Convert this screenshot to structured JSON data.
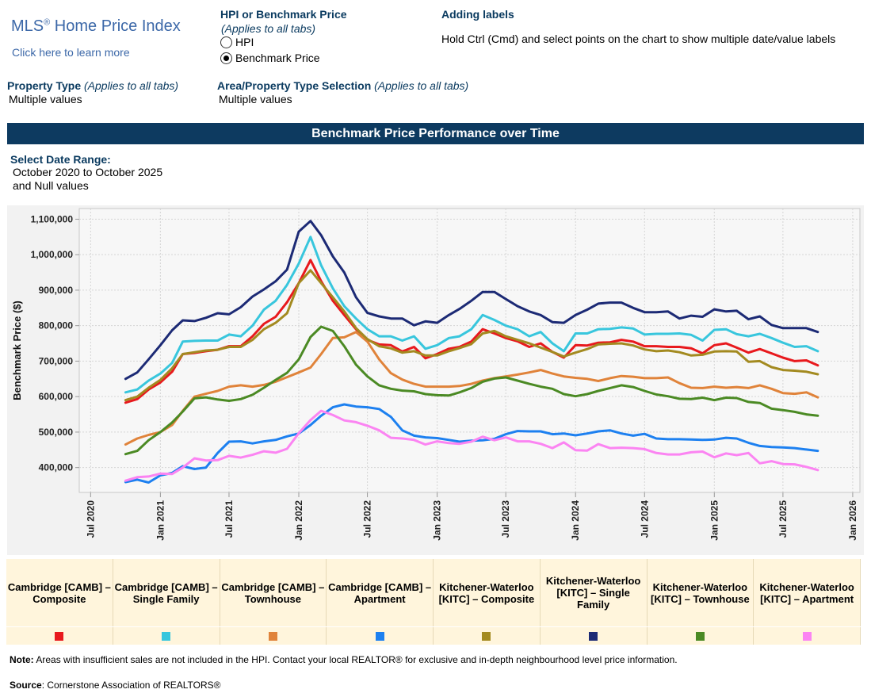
{
  "header": {
    "logo_title": "MLS",
    "logo_reg": "®",
    "logo_title_rest": " Home Price Index",
    "logo_link": "Click here to learn more",
    "hpi_group_label": "HPI or Benchmark Price",
    "hpi_group_note": "(Applies to all tabs)",
    "radio_hpi": "HPI",
    "radio_benchmark": "Benchmark Price",
    "selected_option": "Benchmark Price",
    "adding_labels_title": "Adding labels",
    "adding_labels_text": "Hold Ctrl (Cmd) and select points on the chart to show multiple date/value labels",
    "property_type_label": "Property Type",
    "property_type_note": "(Applies to all tabs)",
    "property_type_value": "Multiple values",
    "area_label": "Area/Property Type Selection",
    "area_note": "(Applies to all tabs)",
    "area_value": "Multiple values"
  },
  "banner": {
    "title": "Benchmark Price Performance over Time"
  },
  "date_range": {
    "label": "Select Date Range:",
    "line1": "October 2020 to October 2025",
    "line2": "and Null values"
  },
  "footer": {
    "note_label": "Note:",
    "note_text": " Areas with insufficient sales are not included in the HPI. Contact your local REALTOR® for exclusive and in-depth neighbourhood level price information.",
    "source_label": "Source",
    "source_text": ": Cornerstone Association of REALTORS®"
  },
  "chart_data": {
    "type": "line",
    "ylabel": "Benchmark Price ($)",
    "ylim": [
      330000,
      1130000
    ],
    "xlim": [
      "2020-06-01",
      "2026-01-20"
    ],
    "yticks": [
      400000,
      500000,
      600000,
      700000,
      800000,
      900000,
      1000000,
      1100000
    ],
    "ytick_labels": [
      "400,000",
      "500,000",
      "600,000",
      "700,000",
      "800,000",
      "900,000",
      "1,000,000",
      "1,100,000"
    ],
    "xticks": [
      "2020-07-01",
      "2021-01-01",
      "2021-07-01",
      "2022-01-01",
      "2022-07-01",
      "2023-01-01",
      "2023-07-01",
      "2024-01-01",
      "2024-07-01",
      "2025-01-01",
      "2025-07-01",
      "2026-01-01"
    ],
    "xtick_labels": [
      "Jul 2020",
      "Jan 2021",
      "Jul 2021",
      "Jan 2022",
      "Jul 2022",
      "Jan 2023",
      "Jul 2023",
      "Jan 2024",
      "Jul 2024",
      "Jan 2025",
      "Jul 2025",
      "Jan 2026"
    ],
    "grid": true,
    "x_start": "2020-10",
    "x_end": "2025-10",
    "series": [
      {
        "name": "Cambridge [CAMB] – Composite",
        "color": "#e8191d",
        "values": [
          583000,
          593000,
          620000,
          640000,
          670000,
          720000,
          723000,
          728000,
          732000,
          742000,
          742000,
          770000,
          805000,
          825000,
          866000,
          920000,
          985000,
          925000,
          870000,
          830000,
          790000,
          760000,
          747000,
          745000,
          727000,
          740000,
          708000,
          720000,
          735000,
          740000,
          755000,
          790000,
          778000,
          765000,
          756000,
          740000,
          750000,
          726000,
          710000,
          745000,
          744000,
          752000,
          753000,
          760000,
          755000,
          742000,
          742000,
          740000,
          740000,
          736000,
          722000,
          745000,
          750000,
          738000,
          724000,
          734000,
          722000,
          710000,
          700000,
          702000,
          688000
        ]
      },
      {
        "name": "Cambridge [CAMB] – Single Family",
        "color": "#38c6dd",
        "values": [
          612000,
          620000,
          645000,
          665000,
          695000,
          755000,
          757000,
          758000,
          758000,
          775000,
          770000,
          800000,
          845000,
          870000,
          915000,
          975000,
          1050000,
          970000,
          905000,
          855000,
          820000,
          790000,
          770000,
          770000,
          758000,
          770000,
          735000,
          745000,
          765000,
          770000,
          790000,
          830000,
          816000,
          800000,
          790000,
          770000,
          782000,
          750000,
          728000,
          778000,
          778000,
          790000,
          791000,
          795000,
          792000,
          775000,
          777000,
          777000,
          778000,
          774000,
          758000,
          788000,
          790000,
          776000,
          770000,
          777000,
          765000,
          752000,
          740000,
          742000,
          728000
        ]
      },
      {
        "name": "Cambridge [CAMB] – Townhouse",
        "color": "#e0833a",
        "values": [
          465000,
          482000,
          492000,
          500000,
          520000,
          560000,
          600000,
          608000,
          616000,
          628000,
          632000,
          628000,
          633000,
          642000,
          655000,
          668000,
          682000,
          720000,
          765000,
          767000,
          782000,
          755000,
          705000,
          666000,
          648000,
          636000,
          628000,
          628000,
          628000,
          630000,
          636000,
          645000,
          652000,
          657000,
          662000,
          668000,
          675000,
          665000,
          657000,
          653000,
          650000,
          644000,
          652000,
          658000,
          656000,
          652000,
          652000,
          654000,
          638000,
          625000,
          624000,
          628000,
          625000,
          627000,
          624000,
          632000,
          622000,
          610000,
          608000,
          612000,
          598000
        ]
      },
      {
        "name": "Cambridge [CAMB] – Apartment",
        "color": "#1d80f0",
        "values": [
          359000,
          366000,
          358000,
          378000,
          385000,
          404000,
          396000,
          400000,
          441000,
          473000,
          474000,
          468000,
          474000,
          478000,
          488000,
          496000,
          520000,
          546000,
          570000,
          578000,
          572000,
          570000,
          565000,
          543000,
          505000,
          490000,
          485000,
          483000,
          478000,
          473000,
          476000,
          477000,
          481000,
          494000,
          503000,
          502000,
          502000,
          494000,
          496000,
          491000,
          496000,
          502000,
          505000,
          496000,
          490000,
          495000,
          482000,
          480000,
          480000,
          479000,
          478000,
          479000,
          484000,
          482000,
          470000,
          461000,
          458000,
          457000,
          455000,
          451000,
          447000
        ]
      },
      {
        "name": "Kitchener-Waterloo [KITC] – Composite",
        "color": "#a38a20",
        "values": [
          590000,
          600000,
          625000,
          647000,
          680000,
          720000,
          725000,
          730000,
          732000,
          740000,
          740000,
          760000,
          790000,
          808000,
          835000,
          920000,
          956000,
          920000,
          880000,
          840000,
          793000,
          762000,
          742000,
          736000,
          724000,
          728000,
          716000,
          716000,
          728000,
          737000,
          748000,
          778000,
          785000,
          770000,
          760000,
          750000,
          738000,
          726000,
          713000,
          724000,
          734000,
          747000,
          749000,
          750000,
          744000,
          733000,
          728000,
          730000,
          725000,
          716000,
          718000,
          727000,
          728000,
          727000,
          698000,
          700000,
          683000,
          675000,
          673000,
          670000,
          663000
        ]
      },
      {
        "name": "Kitchener-Waterloo [KITC] – Single Family",
        "color": "#1c2a75",
        "values": [
          650000,
          668000,
          705000,
          745000,
          787000,
          815000,
          813000,
          822000,
          835000,
          832000,
          852000,
          882000,
          902000,
          925000,
          958000,
          1065000,
          1095000,
          1055000,
          995000,
          950000,
          880000,
          836000,
          826000,
          820000,
          820000,
          801000,
          812000,
          808000,
          830000,
          847000,
          870000,
          895000,
          895000,
          875000,
          855000,
          840000,
          830000,
          810000,
          808000,
          830000,
          845000,
          862000,
          865000,
          865000,
          850000,
          838000,
          838000,
          840000,
          820000,
          828000,
          825000,
          846000,
          840000,
          842000,
          818000,
          826000,
          802000,
          793000,
          793000,
          793000,
          782000
        ]
      },
      {
        "name": "Kitchener-Waterloo [KITC] – Townhouse",
        "color": "#4b8a24",
        "values": [
          438000,
          447000,
          477000,
          500000,
          527000,
          558000,
          595000,
          598000,
          592000,
          588000,
          593000,
          605000,
          625000,
          647000,
          667000,
          705000,
          768000,
          797000,
          785000,
          742000,
          690000,
          657000,
          632000,
          622000,
          617000,
          615000,
          607000,
          604000,
          603000,
          612000,
          624000,
          642000,
          651000,
          654000,
          645000,
          636000,
          628000,
          622000,
          607000,
          601000,
          607000,
          616000,
          624000,
          632000,
          627000,
          616000,
          606000,
          601000,
          594000,
          593000,
          597000,
          590000,
          597000,
          596000,
          585000,
          582000,
          566000,
          562000,
          557000,
          550000,
          546000
        ]
      },
      {
        "name": "Kitchener-Waterloo [KITC] – Apartment",
        "color": "#fb84f2",
        "values": [
          363000,
          373000,
          375000,
          383000,
          382000,
          400000,
          426000,
          420000,
          421000,
          433000,
          428000,
          436000,
          446000,
          442000,
          453000,
          497000,
          534000,
          560000,
          548000,
          533000,
          528000,
          518000,
          505000,
          484000,
          482000,
          478000,
          465000,
          474000,
          469000,
          467000,
          473000,
          487000,
          477000,
          485000,
          474000,
          474000,
          467000,
          455000,
          471000,
          449000,
          448000,
          466000,
          455000,
          456000,
          455000,
          452000,
          441000,
          437000,
          437000,
          443000,
          445000,
          429000,
          440000,
          435000,
          441000,
          412000,
          418000,
          410000,
          409000,
          402000,
          393000
        ]
      }
    ]
  }
}
